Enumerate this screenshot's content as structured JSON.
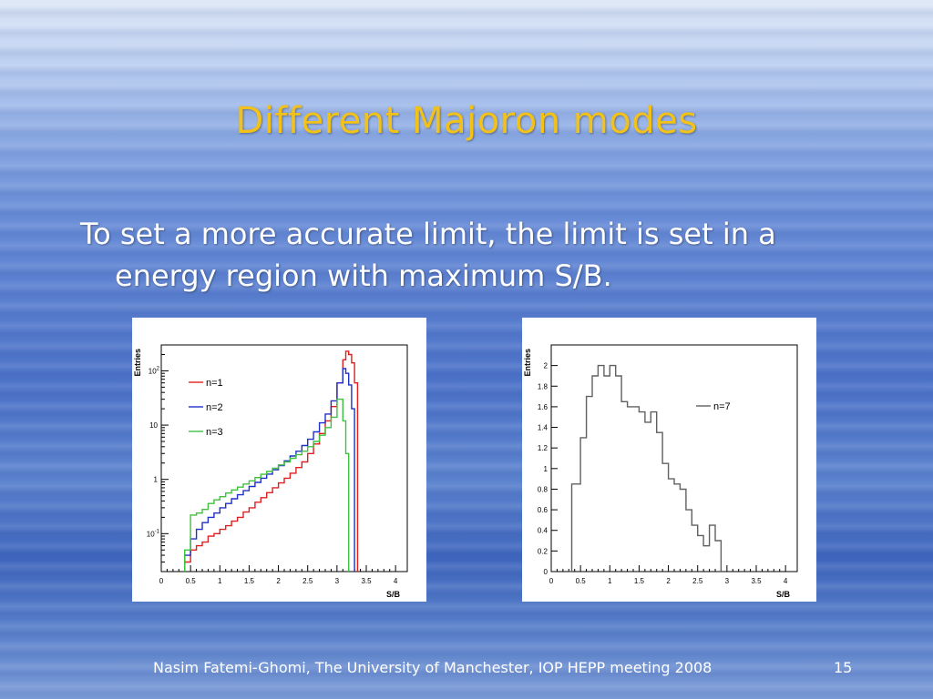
{
  "slide": {
    "title": "Different Majoron modes",
    "bullet_line1": "To set a more accurate limit, the limit is set in a",
    "bullet_line2": "energy region with maximum S/B.",
    "footer": "Nasim Fatemi-Ghomi, The University of Manchester,  IOP HEPP meeting 2008",
    "page_number": "15"
  },
  "chart_data": [
    {
      "type": "line",
      "xlabel": "S/B",
      "ylabel": "Entries",
      "xlim": [
        0,
        4.2
      ],
      "ylim": [
        0.02,
        300
      ],
      "y_scale": "log",
      "x_ticks": [
        "0",
        "0.5",
        "1",
        "1.5",
        "2",
        "2.5",
        "3",
        "3.5",
        "4"
      ],
      "y_ticks": [
        {
          "value": 0.1,
          "base": "10",
          "exp": "-1"
        },
        {
          "value": 1,
          "base": "1",
          "exp": ""
        },
        {
          "value": 10,
          "base": "10",
          "exp": ""
        },
        {
          "value": 100,
          "base": "10",
          "exp": "2"
        }
      ],
      "legend_position": "top-left",
      "series": [
        {
          "name": "n=1",
          "color": "#e02020",
          "values": [
            [
              0.4,
              0.03
            ],
            [
              0.5,
              0.05
            ],
            [
              0.6,
              0.06
            ],
            [
              0.7,
              0.07
            ],
            [
              0.8,
              0.09
            ],
            [
              0.9,
              0.1
            ],
            [
              1.0,
              0.12
            ],
            [
              1.1,
              0.14
            ],
            [
              1.2,
              0.17
            ],
            [
              1.3,
              0.2
            ],
            [
              1.4,
              0.25
            ],
            [
              1.5,
              0.3
            ],
            [
              1.6,
              0.38
            ],
            [
              1.7,
              0.46
            ],
            [
              1.8,
              0.57
            ],
            [
              1.9,
              0.7
            ],
            [
              2.0,
              0.86
            ],
            [
              2.1,
              1.05
            ],
            [
              2.2,
              1.3
            ],
            [
              2.3,
              1.65
            ],
            [
              2.4,
              2.1
            ],
            [
              2.5,
              3.0
            ],
            [
              2.6,
              4.5
            ],
            [
              2.7,
              7.0
            ],
            [
              2.8,
              12.0
            ],
            [
              2.9,
              22.0
            ],
            [
              3.0,
              60.0
            ],
            [
              3.1,
              160
            ],
            [
              3.15,
              230
            ],
            [
              3.2,
              200
            ],
            [
              3.25,
              140
            ],
            [
              3.3,
              60.0
            ],
            [
              3.35,
              0.03
            ]
          ]
        },
        {
          "name": "n=2",
          "color": "#2030c8",
          "values": [
            [
              0.4,
              0.04
            ],
            [
              0.5,
              0.08
            ],
            [
              0.6,
              0.12
            ],
            [
              0.7,
              0.16
            ],
            [
              0.8,
              0.2
            ],
            [
              0.9,
              0.24
            ],
            [
              1.0,
              0.3
            ],
            [
              1.1,
              0.36
            ],
            [
              1.2,
              0.44
            ],
            [
              1.3,
              0.52
            ],
            [
              1.4,
              0.62
            ],
            [
              1.5,
              0.74
            ],
            [
              1.6,
              0.88
            ],
            [
              1.7,
              1.05
            ],
            [
              1.8,
              1.25
            ],
            [
              1.9,
              1.5
            ],
            [
              2.0,
              1.8
            ],
            [
              2.1,
              2.2
            ],
            [
              2.2,
              2.7
            ],
            [
              2.3,
              3.3
            ],
            [
              2.4,
              4.2
            ],
            [
              2.5,
              5.5
            ],
            [
              2.6,
              7.5
            ],
            [
              2.7,
              11.0
            ],
            [
              2.8,
              16.0
            ],
            [
              2.9,
              28.0
            ],
            [
              3.0,
              60.0
            ],
            [
              3.1,
              110
            ],
            [
              3.15,
              90.0
            ],
            [
              3.2,
              55.0
            ],
            [
              3.25,
              20.0
            ],
            [
              3.3,
              0.03
            ]
          ]
        },
        {
          "name": "n=3",
          "color": "#40c040",
          "values": [
            [
              0.4,
              0.05
            ],
            [
              0.5,
              0.22
            ],
            [
              0.6,
              0.24
            ],
            [
              0.7,
              0.28
            ],
            [
              0.8,
              0.36
            ],
            [
              0.9,
              0.42
            ],
            [
              1.0,
              0.48
            ],
            [
              1.1,
              0.56
            ],
            [
              1.2,
              0.64
            ],
            [
              1.3,
              0.72
            ],
            [
              1.4,
              0.82
            ],
            [
              1.5,
              0.94
            ],
            [
              1.6,
              1.08
            ],
            [
              1.7,
              1.24
            ],
            [
              1.8,
              1.4
            ],
            [
              1.9,
              1.6
            ],
            [
              2.0,
              1.85
            ],
            [
              2.1,
              2.1
            ],
            [
              2.2,
              2.45
            ],
            [
              2.3,
              2.85
            ],
            [
              2.4,
              3.3
            ],
            [
              2.5,
              4.0
            ],
            [
              2.6,
              5.0
            ],
            [
              2.7,
              6.5
            ],
            [
              2.8,
              9.0
            ],
            [
              2.9,
              14.0
            ],
            [
              3.0,
              30.0
            ],
            [
              3.1,
              12.0
            ],
            [
              3.15,
              3.0
            ],
            [
              3.2,
              0.03
            ]
          ]
        }
      ]
    },
    {
      "type": "line",
      "xlabel": "S/B",
      "ylabel": "Entries",
      "xlim": [
        0,
        4.2
      ],
      "ylim": [
        0,
        2.2
      ],
      "y_scale": "linear",
      "x_ticks": [
        "0",
        "0.5",
        "1",
        "1.5",
        "2",
        "2.5",
        "3",
        "3.5",
        "4"
      ],
      "y_ticks": [
        "0",
        "0.2",
        "0.4",
        "0.6",
        "0.8",
        "1",
        "1.2",
        "1.4",
        "1.6",
        "1.8",
        "2"
      ],
      "legend_position": "top-right",
      "series": [
        {
          "name": "n=7",
          "color": "#606060",
          "values": [
            [
              0.3,
              0.0
            ],
            [
              0.35,
              0.85
            ],
            [
              0.5,
              1.3
            ],
            [
              0.6,
              1.7
            ],
            [
              0.7,
              1.9
            ],
            [
              0.8,
              2.0
            ],
            [
              0.9,
              1.9
            ],
            [
              1.0,
              2.0
            ],
            [
              1.1,
              1.9
            ],
            [
              1.2,
              1.65
            ],
            [
              1.3,
              1.6
            ],
            [
              1.4,
              1.6
            ],
            [
              1.5,
              1.55
            ],
            [
              1.6,
              1.45
            ],
            [
              1.7,
              1.55
            ],
            [
              1.8,
              1.35
            ],
            [
              1.9,
              1.05
            ],
            [
              2.0,
              0.9
            ],
            [
              2.1,
              0.85
            ],
            [
              2.2,
              0.8
            ],
            [
              2.3,
              0.6
            ],
            [
              2.4,
              0.45
            ],
            [
              2.5,
              0.35
            ],
            [
              2.6,
              0.25
            ],
            [
              2.7,
              0.45
            ],
            [
              2.8,
              0.3
            ],
            [
              2.9,
              0.0
            ]
          ]
        }
      ]
    }
  ]
}
